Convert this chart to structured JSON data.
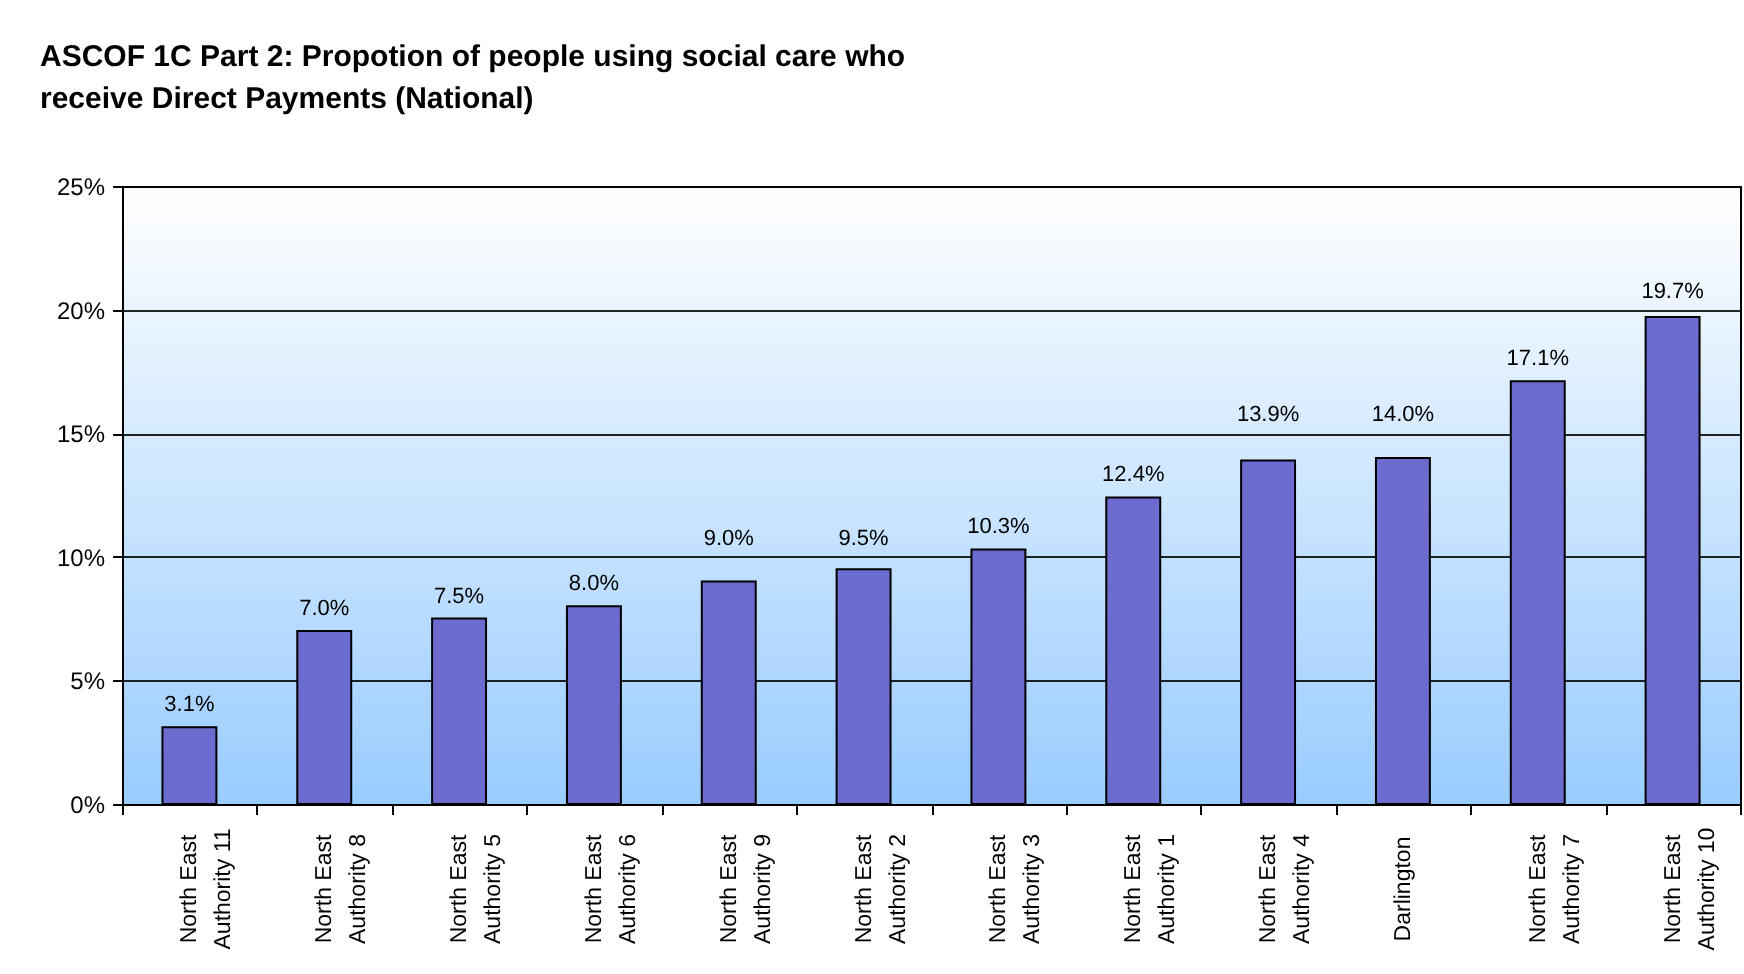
{
  "chart_data": {
    "type": "bar",
    "title": "ASCOF 1C Part 2: Propotion of people using social care who receive Direct Payments (National)",
    "categories": [
      "North East Authority 11",
      "North East Authority 8",
      "North East Authority 5",
      "North East Authority 6",
      "North East Authority 9",
      "North East Authority 2",
      "North East Authority 3",
      "North East Authority 1",
      "North East Authority 4",
      "Darlington",
      "North East Authority 7",
      "North East Authority 10"
    ],
    "values": [
      3.1,
      7.0,
      7.5,
      8.0,
      9.0,
      9.5,
      10.3,
      12.4,
      13.9,
      14.0,
      17.1,
      19.7
    ],
    "value_labels": [
      "3.1%",
      "7.0%",
      "7.5%",
      "8.0%",
      "9.0%",
      "9.5%",
      "10.3%",
      "12.4%",
      "13.9%",
      "14.0%",
      "17.1%",
      "19.7%"
    ],
    "color": "#6b6bd0",
    "ylim": [
      0,
      25
    ],
    "yticks": [
      {
        "value": 0,
        "label": "0%"
      },
      {
        "value": 5,
        "label": "5%"
      },
      {
        "value": 10,
        "label": "10%"
      },
      {
        "value": 15,
        "label": "15%"
      },
      {
        "value": 20,
        "label": "20%"
      },
      {
        "value": 25,
        "label": "25%"
      }
    ],
    "grid": "y"
  }
}
